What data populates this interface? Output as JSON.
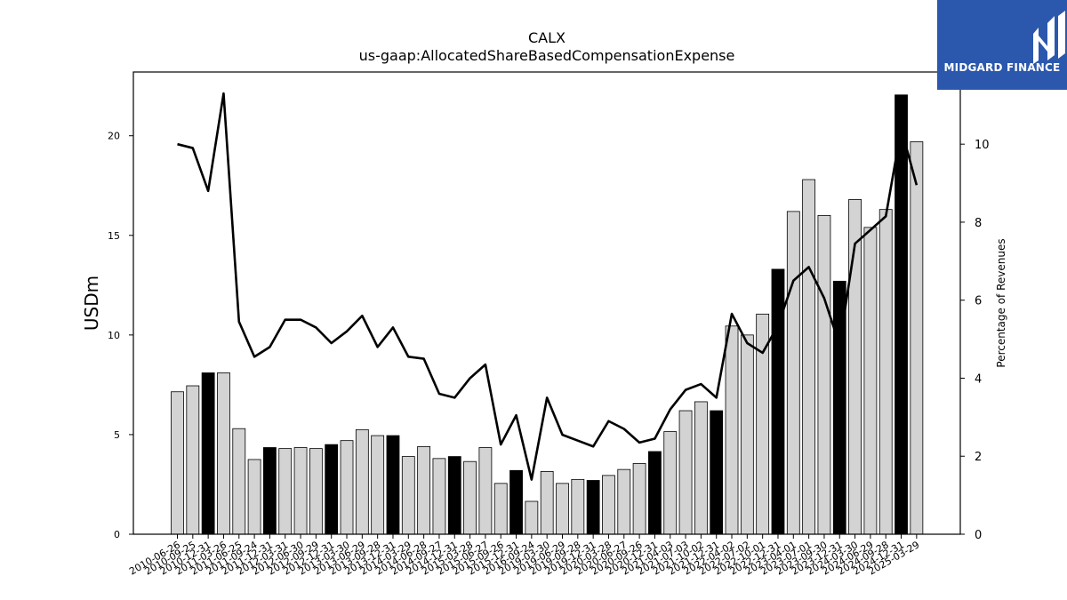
{
  "chart_data": {
    "type": "bar",
    "title": "CALX",
    "subtitle": "us-gaap:AllocatedShareBasedCompensationExpense",
    "ylabel": "USDm",
    "y2label": "Percentage of Revenues",
    "ylim": [
      0,
      23.2
    ],
    "y2lim": [
      0,
      11.85
    ],
    "yticks": [
      0,
      5,
      10,
      15,
      20
    ],
    "y2ticks": [
      0,
      2,
      4,
      6,
      8,
      10
    ],
    "categories": [
      "2010-06-26",
      "2010-09-25",
      "2010-12-31",
      "2011-03-26",
      "2011-06-25",
      "2011-09-24",
      "2011-12-31",
      "2012-03-31",
      "2012-06-30",
      "2012-09-29",
      "2012-12-31",
      "2013-03-30",
      "2013-06-29",
      "2013-09-28",
      "2013-12-31",
      "2014-03-29",
      "2014-06-28",
      "2014-09-27",
      "2014-12-31",
      "2015-03-28",
      "2015-06-27",
      "2015-09-26",
      "2015-12-31",
      "2016-09-24",
      "2019-03-30",
      "2019-06-29",
      "2019-09-28",
      "2019-12-31",
      "2020-03-28",
      "2020-06-27",
      "2020-09-26",
      "2020-12-31",
      "2021-04-03",
      "2021-07-03",
      "2021-10-02",
      "2021-12-31",
      "2022-04-02",
      "2022-07-02",
      "2022-10-01",
      "2022-12-31",
      "2023-04-01",
      "2023-07-01",
      "2023-09-30",
      "2023-12-31",
      "2024-03-30",
      "2024-06-29",
      "2024-09-28",
      "2024-12-31",
      "2025-03-29"
    ],
    "series": [
      {
        "values": [
          7.15,
          7.45,
          8.1,
          8.1,
          5.3,
          3.75,
          4.35,
          4.3,
          4.35,
          4.3,
          4.5,
          4.7,
          5.25,
          4.95,
          4.95,
          3.9,
          4.4,
          3.8,
          3.9,
          3.65,
          4.35,
          2.55,
          3.2,
          1.65,
          3.15,
          2.55,
          2.75,
          2.7,
          2.95,
          3.25,
          3.55,
          4.15,
          5.15,
          6.2,
          6.65,
          6.2,
          10.45,
          10.0,
          11.05,
          13.3,
          16.2,
          17.8,
          16.0,
          12.7,
          16.8,
          15.4,
          16.3,
          22.05,
          19.7
        ],
        "highlight": [
          false,
          false,
          true,
          false,
          false,
          false,
          true,
          false,
          false,
          false,
          true,
          false,
          false,
          false,
          true,
          false,
          false,
          false,
          true,
          false,
          false,
          false,
          true,
          false,
          false,
          false,
          false,
          true,
          false,
          false,
          false,
          true,
          false,
          false,
          false,
          true,
          false,
          false,
          false,
          true,
          false,
          false,
          false,
          true,
          false,
          false,
          false,
          true,
          false
        ]
      },
      {
        "type": "line",
        "axis": "right",
        "values": [
          10.0,
          9.9,
          8.8,
          11.3,
          5.45,
          4.55,
          4.8,
          5.5,
          5.5,
          5.3,
          4.9,
          5.2,
          5.6,
          4.8,
          5.3,
          4.55,
          4.5,
          3.6,
          3.5,
          4.0,
          4.35,
          2.3,
          3.05,
          1.4,
          3.5,
          2.55,
          2.4,
          2.25,
          2.9,
          2.7,
          2.35,
          2.45,
          3.2,
          3.7,
          3.85,
          3.5,
          5.65,
          4.9,
          4.65,
          5.35,
          6.5,
          6.85,
          6.05,
          4.85,
          7.45,
          7.8,
          8.15,
          10.4,
          8.95
        ]
      }
    ],
    "colors": {
      "bar_fill": "#d3d3d3",
      "bar_highlight": "#000000",
      "bar_edge": "#000000",
      "line": "#000000",
      "logo_bg": "#2b58ad"
    },
    "grid": false,
    "legend": "none"
  },
  "logo": {
    "text": "MIDGARD FINANCE",
    "icon": "midgard-logo-icon"
  }
}
